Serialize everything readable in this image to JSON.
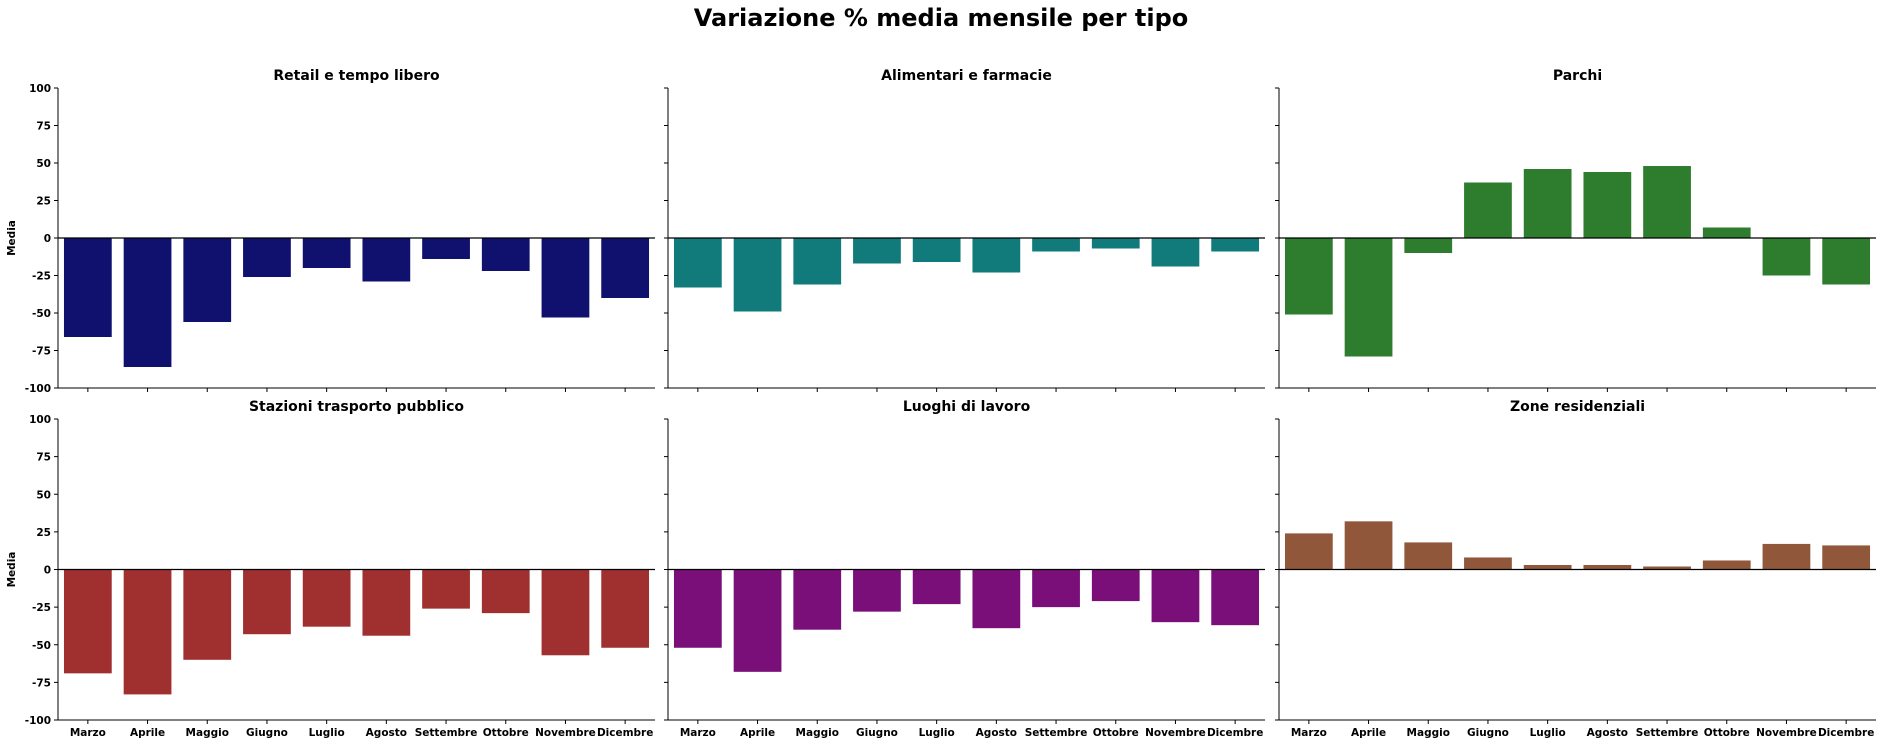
{
  "chart_data": {
    "type": "bar",
    "title": "Variazione % media mensile per tipo",
    "ylabel": "Media",
    "ylim": [
      -100,
      100
    ],
    "yticks": [
      -100,
      -75,
      -50,
      -25,
      0,
      25,
      50,
      75,
      100
    ],
    "categories": [
      "Marzo",
      "Aprile",
      "Maggio",
      "Giugno",
      "Luglio",
      "Agosto",
      "Settembre",
      "Ottobre",
      "Novembre",
      "Dicembre"
    ],
    "grid": false,
    "panels": [
      {
        "title": "Retail e tempo libero",
        "color": "#10106e",
        "values": [
          -66,
          -86,
          -56,
          -26,
          -20,
          -29,
          -14,
          -22,
          -53,
          -40
        ]
      },
      {
        "title": "Alimentari e farmacie",
        "color": "#117a7a",
        "values": [
          -33,
          -49,
          -31,
          -17,
          -16,
          -23,
          -9,
          -7,
          -19,
          -9
        ]
      },
      {
        "title": "Parchi",
        "color": "#2e7d2e",
        "values": [
          -51,
          -79,
          -10,
          37,
          46,
          44,
          48,
          7,
          -25,
          -31
        ]
      },
      {
        "title": "Stazioni trasporto pubblico",
        "color": "#a03030",
        "values": [
          -69,
          -83,
          -60,
          -43,
          -38,
          -44,
          -26,
          -29,
          -57,
          -52
        ]
      },
      {
        "title": "Luoghi di lavoro",
        "color": "#7a0f7a",
        "values": [
          -52,
          -68,
          -40,
          -28,
          -23,
          -39,
          -25,
          -21,
          -35,
          -37
        ]
      },
      {
        "title": "Zone residenziali",
        "color": "#91573a",
        "values": [
          24,
          32,
          18,
          8,
          3,
          3,
          2,
          6,
          17,
          16
        ]
      }
    ]
  }
}
